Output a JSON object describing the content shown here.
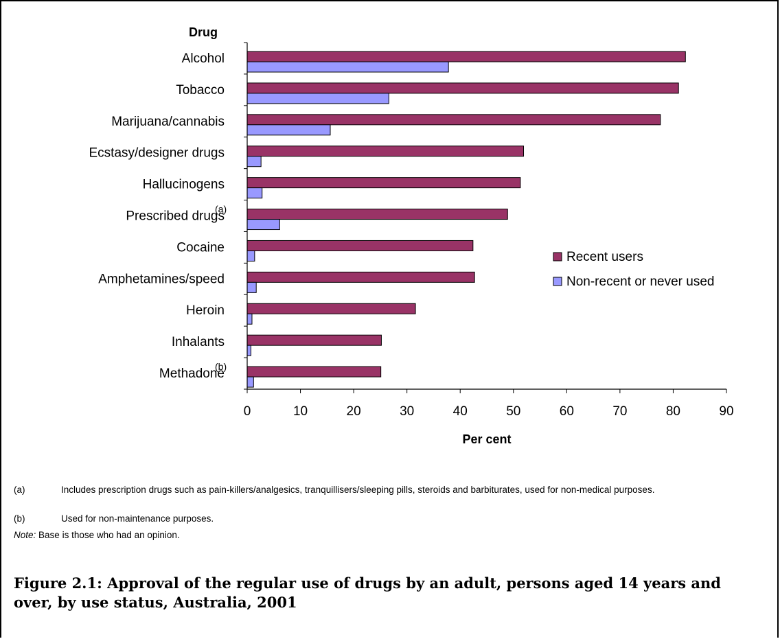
{
  "chart_data": {
    "type": "bar",
    "orientation": "horizontal",
    "y_axis_title": "Drug",
    "x_axis_title": "Per cent",
    "categories": [
      {
        "label": "Alcohol",
        "note": ""
      },
      {
        "label": "Tobacco",
        "note": ""
      },
      {
        "label": "Marijuana/cannabis",
        "note": ""
      },
      {
        "label": "Ecstasy/designer drugs",
        "note": ""
      },
      {
        "label": "Hallucinogens",
        "note": ""
      },
      {
        "label": "Prescribed drugs",
        "note": "(a)"
      },
      {
        "label": "Cocaine",
        "note": ""
      },
      {
        "label": "Amphetamines/speed",
        "note": ""
      },
      {
        "label": "Heroin",
        "note": ""
      },
      {
        "label": "Inhalants",
        "note": ""
      },
      {
        "label": "Methadone",
        "note": "(b)"
      }
    ],
    "series": [
      {
        "name": "Recent users",
        "color": "#993366",
        "values": [
          82.3,
          81.0,
          77.6,
          51.9,
          51.3,
          48.9,
          42.4,
          42.7,
          31.6,
          25.2,
          25.1
        ]
      },
      {
        "name": "Non-recent or never used",
        "color": "#9999ff",
        "values": [
          37.8,
          26.6,
          15.6,
          2.6,
          2.8,
          6.1,
          1.4,
          1.7,
          0.9,
          0.7,
          1.2
        ]
      }
    ],
    "xlim": [
      0,
      90
    ],
    "xticks": [
      "0",
      "10",
      "20",
      "30",
      "40",
      "50",
      "60",
      "70",
      "80",
      "90"
    ],
    "legend_position": "right",
    "grid": false
  },
  "footnotes": [
    {
      "marker": "(a)",
      "text": "Includes prescription drugs such as pain-killers/analgesics, tranquillisers/sleeping pills, steroids and barbiturates, used for non-medical purposes."
    },
    {
      "marker": "(b)",
      "text": "Used for non-maintenance purposes."
    }
  ],
  "note": {
    "label": "Note:",
    "text": "Base is those who had an opinion."
  },
  "caption": "Figure 2.1: Approval of the regular use of drugs by an adult, persons aged 14 years and over, by use status, Australia, 2001",
  "colors": {
    "recent": "#993366",
    "nonrecent": "#9999ff",
    "outline": "#000000"
  }
}
